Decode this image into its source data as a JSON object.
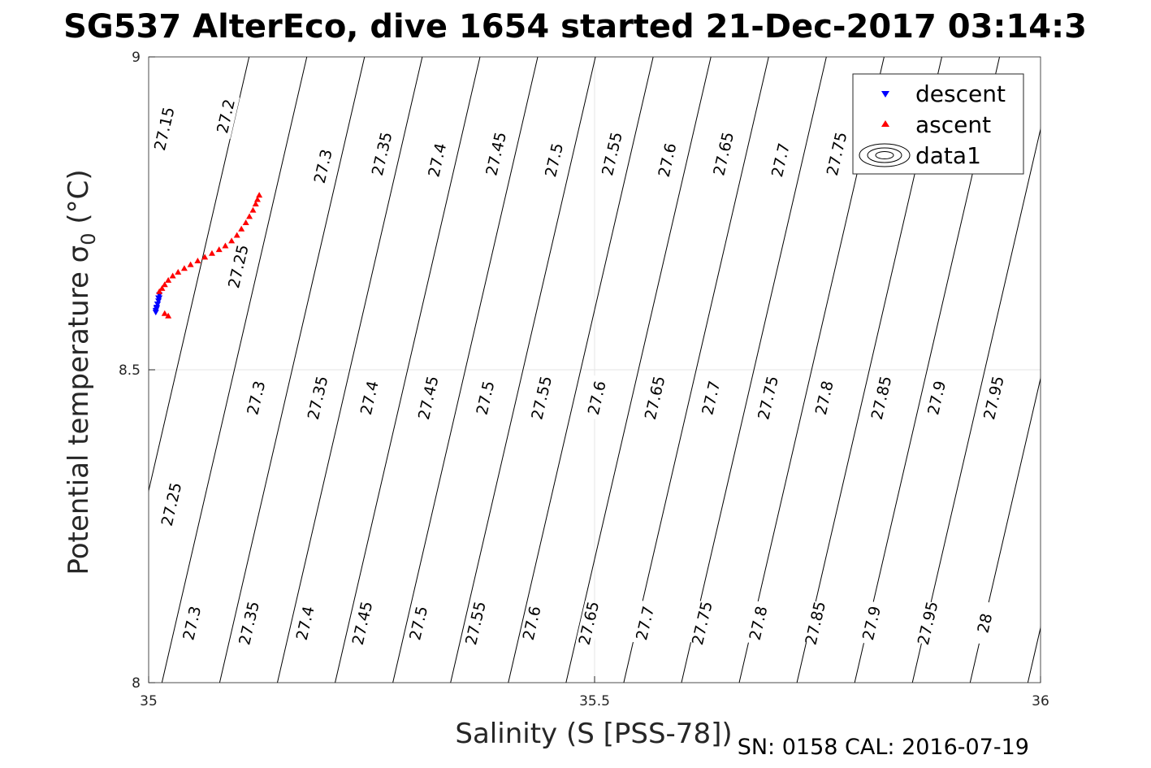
{
  "title": "SG537 AlterEco, dive 1654 started 21-Dec-2017 03:14:3",
  "footer": "SN: 0158  CAL: 2016-07-19",
  "chart_data": {
    "type": "scatter",
    "title": "SG537 AlterEco, dive 1654 started 21-Dec-2017 03:14:3",
    "xlabel": "Salinity (S [PSS-78])",
    "ylabel_main": "Potential temperature σ",
    "ylabel_sub": "0",
    "ylabel_unit": " (°C)",
    "xlim": [
      35,
      36
    ],
    "ylim": [
      8,
      9
    ],
    "xticks": [
      {
        "v": 35,
        "label": "35"
      },
      {
        "v": 35.5,
        "label": "35.5"
      },
      {
        "v": 36,
        "label": "36"
      }
    ],
    "yticks": [
      {
        "v": 8,
        "label": "8"
      },
      {
        "v": 8.5,
        "label": "8.5"
      },
      {
        "v": 9,
        "label": "9"
      }
    ],
    "grid": true,
    "legend_position": "top-right",
    "legend": [
      {
        "key": "descent",
        "label": "descent",
        "marker": "triangle-down",
        "color": "#0000ff"
      },
      {
        "key": "ascent",
        "label": "ascent",
        "marker": "triangle-up",
        "color": "#ff0000"
      },
      {
        "key": "data1",
        "label": "data1",
        "marker": "contour",
        "color": "#000000"
      }
    ],
    "contour_levels": [
      27.15,
      27.2,
      27.25,
      27.3,
      27.35,
      27.4,
      27.45,
      27.5,
      27.55,
      27.6,
      27.65,
      27.7,
      27.75,
      27.8,
      27.85,
      27.9,
      27.95,
      28
    ],
    "contour_labels": [
      {
        "level": 27.15,
        "text": "27.15",
        "s": 35.018,
        "t": 8.885
      },
      {
        "level": 27.2,
        "text": "27.2",
        "s": 35.087,
        "t": 8.905
      },
      {
        "level": 27.25,
        "text": "27.25",
        "s": 35.101,
        "t": 8.665
      },
      {
        "level": 27.3,
        "text": "27.3",
        "s": 35.196,
        "t": 8.825
      },
      {
        "level": 27.35,
        "text": "27.35",
        "s": 35.262,
        "t": 8.845
      },
      {
        "level": 27.4,
        "text": "27.4",
        "s": 35.324,
        "t": 8.835
      },
      {
        "level": 27.45,
        "text": "27.45",
        "s": 35.39,
        "t": 8.845
      },
      {
        "level": 27.5,
        "text": "27.5",
        "s": 35.455,
        "t": 8.835
      },
      {
        "level": 27.55,
        "text": "27.55",
        "s": 35.52,
        "t": 8.845
      },
      {
        "level": 27.6,
        "text": "27.6",
        "s": 35.582,
        "t": 8.835
      },
      {
        "level": 27.65,
        "text": "27.65",
        "s": 35.645,
        "t": 8.845
      },
      {
        "level": 27.7,
        "text": "27.7",
        "s": 35.709,
        "t": 8.835
      },
      {
        "level": 27.75,
        "text": "27.75",
        "s": 35.772,
        "t": 8.845
      },
      {
        "level": 27.3,
        "text": "27.3",
        "s": 35.121,
        "t": 8.455
      },
      {
        "level": 27.35,
        "text": "27.35",
        "s": 35.19,
        "t": 8.455
      },
      {
        "level": 27.4,
        "text": "27.4",
        "s": 35.248,
        "t": 8.455
      },
      {
        "level": 27.45,
        "text": "27.45",
        "s": 35.314,
        "t": 8.455
      },
      {
        "level": 27.5,
        "text": "27.5",
        "s": 35.378,
        "t": 8.455
      },
      {
        "level": 27.55,
        "text": "27.55",
        "s": 35.441,
        "t": 8.455
      },
      {
        "level": 27.6,
        "text": "27.6",
        "s": 35.503,
        "t": 8.455
      },
      {
        "level": 27.65,
        "text": "27.65",
        "s": 35.568,
        "t": 8.455
      },
      {
        "level": 27.7,
        "text": "27.7",
        "s": 35.631,
        "t": 8.455
      },
      {
        "level": 27.75,
        "text": "27.75",
        "s": 35.695,
        "t": 8.455
      },
      {
        "level": 27.8,
        "text": "27.8",
        "s": 35.758,
        "t": 8.455
      },
      {
        "level": 27.85,
        "text": "27.85",
        "s": 35.822,
        "t": 8.455
      },
      {
        "level": 27.9,
        "text": "27.9",
        "s": 35.884,
        "t": 8.455
      },
      {
        "level": 27.95,
        "text": "27.95",
        "s": 35.948,
        "t": 8.455
      },
      {
        "level": 27.25,
        "text": "27.25",
        "s": 35.026,
        "t": 8.285
      },
      {
        "level": 27.3,
        "text": "27.3",
        "s": 35.049,
        "t": 8.095
      },
      {
        "level": 27.35,
        "text": "27.35",
        "s": 35.113,
        "t": 8.095
      },
      {
        "level": 27.4,
        "text": "27.4",
        "s": 35.176,
        "t": 8.095
      },
      {
        "level": 27.45,
        "text": "27.45",
        "s": 35.24,
        "t": 8.095
      },
      {
        "level": 27.5,
        "text": "27.5",
        "s": 35.303,
        "t": 8.095
      },
      {
        "level": 27.55,
        "text": "27.55",
        "s": 35.367,
        "t": 8.095
      },
      {
        "level": 27.6,
        "text": "27.6",
        "s": 35.43,
        "t": 8.095
      },
      {
        "level": 27.65,
        "text": "27.65",
        "s": 35.494,
        "t": 8.095
      },
      {
        "level": 27.7,
        "text": "27.7",
        "s": 35.557,
        "t": 8.095
      },
      {
        "level": 27.75,
        "text": "27.75",
        "s": 35.621,
        "t": 8.095
      },
      {
        "level": 27.8,
        "text": "27.8",
        "s": 35.684,
        "t": 8.095
      },
      {
        "level": 27.85,
        "text": "27.85",
        "s": 35.748,
        "t": 8.095
      },
      {
        "level": 27.9,
        "text": "27.9",
        "s": 35.811,
        "t": 8.095
      },
      {
        "level": 27.95,
        "text": "27.95",
        "s": 35.874,
        "t": 8.095
      },
      {
        "level": 28,
        "text": "28",
        "s": 35.938,
        "t": 8.095
      }
    ],
    "series": [
      {
        "name": "descent",
        "marker": "triangle-down",
        "color": "#0000ff",
        "x": [
          35.008,
          35.009,
          35.01,
          35.011,
          35.012,
          35.012,
          35.011,
          35.01,
          35.009,
          35.008
        ],
        "y": [
          8.595,
          8.6,
          8.605,
          8.61,
          8.615,
          8.62,
          8.615,
          8.605,
          8.598,
          8.592
        ]
      },
      {
        "name": "ascent",
        "marker": "triangle-up",
        "color": "#ff0000",
        "x": [
          35.012,
          35.015,
          35.018,
          35.022,
          35.027,
          35.033,
          35.04,
          35.047,
          35.055,
          35.063,
          35.071,
          35.079,
          35.086,
          35.093,
          35.099,
          35.104,
          35.109,
          35.113,
          35.117,
          35.12,
          35.122,
          35.124,
          35.018,
          35.022
        ],
        "y": [
          8.625,
          8.63,
          8.636,
          8.643,
          8.65,
          8.656,
          8.662,
          8.668,
          8.674,
          8.68,
          8.686,
          8.692,
          8.698,
          8.706,
          8.715,
          8.725,
          8.735,
          8.745,
          8.755,
          8.765,
          8.772,
          8.779,
          8.59,
          8.586
        ]
      }
    ]
  }
}
